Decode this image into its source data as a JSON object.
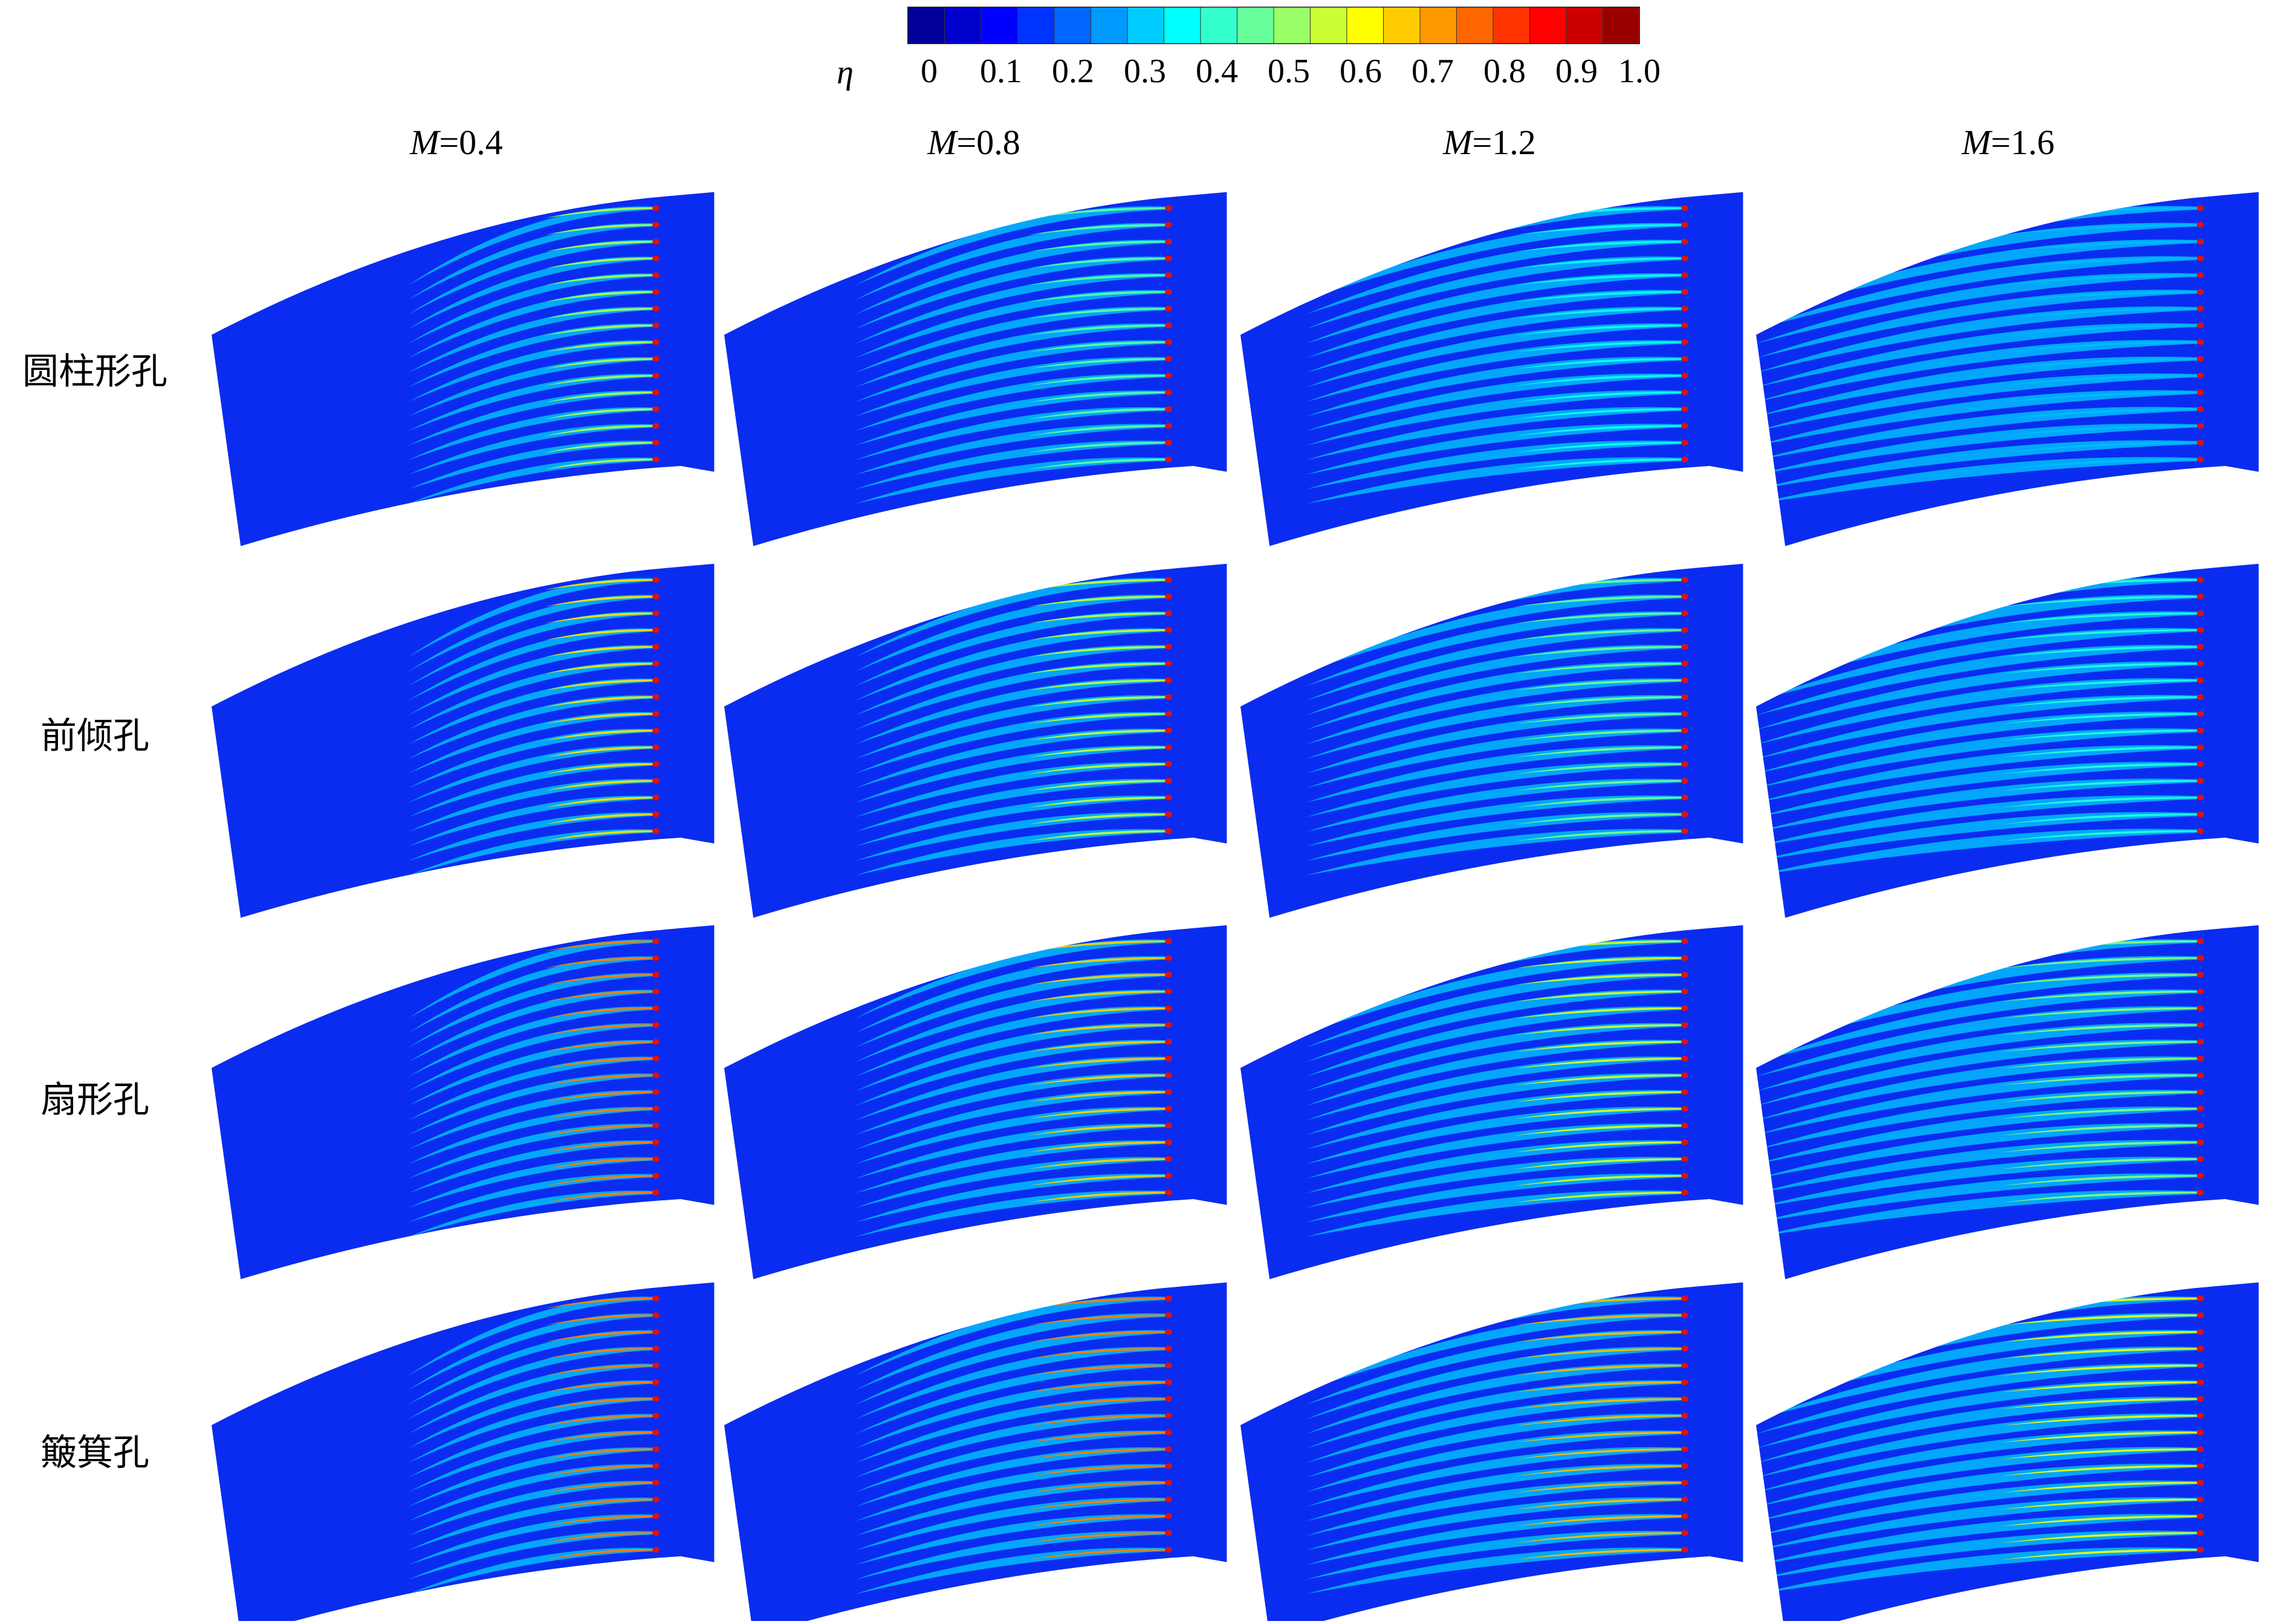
{
  "colorbar": {
    "symbol": "η",
    "ticks": [
      "0",
      "0.1",
      "0.2",
      "0.3",
      "0.4",
      "0.5",
      "0.6",
      "0.7",
      "0.8",
      "0.9",
      "1.0"
    ]
  },
  "columns": [
    {
      "var": "M",
      "rest": "=0.4"
    },
    {
      "var": "M",
      "rest": "=0.8"
    },
    {
      "var": "M",
      "rest": "=1.2"
    },
    {
      "var": "M",
      "rest": "=1.6"
    }
  ],
  "rows": [
    "圆柱形孔",
    "前倾孔",
    "扇形孔",
    "簸箕孔"
  ]
}
